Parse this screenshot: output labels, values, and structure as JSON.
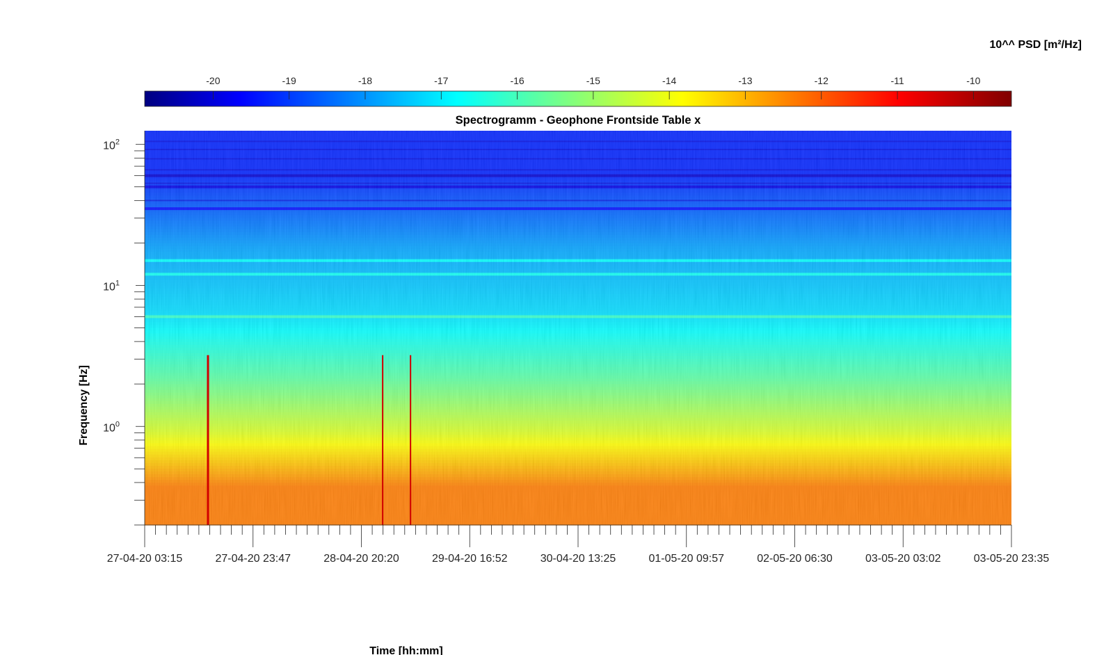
{
  "chart_data": {
    "type": "heatmap",
    "title": "Spectrogramm - Geophone Frontside Table x",
    "xlabel": "Time [hh:mm]",
    "ylabel": "Frequency [Hz]",
    "colorbar_label": "10^^ PSD [m²/Hz]",
    "colorbar_ticks": [
      "-20",
      "-19",
      "-18",
      "-17",
      "-16",
      "-15",
      "-14",
      "-13",
      "-12",
      "-11",
      "-10"
    ],
    "colorbar_range": [
      -20.9,
      -9.5
    ],
    "colormap": "jet",
    "x_tick_labels": [
      "27-04-20 03:15",
      "27-04-20 23:47",
      "28-04-20 20:20",
      "29-04-20 16:52",
      "30-04-20 13:25",
      "01-05-20 09:57",
      "02-05-20 06:30",
      "03-05-20 03:02",
      "03-05-20 23:35"
    ],
    "y_scale": "log",
    "y_tick_labels": [
      {
        "base": "10",
        "exp": "0"
      },
      {
        "base": "10",
        "exp": "1"
      },
      {
        "base": "10",
        "exp": "2"
      }
    ],
    "ylim": [
      0.2,
      125
    ],
    "bands": [
      {
        "f_min": 0.2,
        "f_max": 0.7,
        "psd": -12.3
      },
      {
        "f_min": 0.7,
        "f_max": 1.2,
        "psd": -14.2
      },
      {
        "f_min": 1.2,
        "f_max": 4,
        "psd": -15.6
      },
      {
        "f_min": 4,
        "f_max": 10,
        "psd": -17.0
      },
      {
        "f_min": 10,
        "f_max": 30,
        "psd": -17.6
      },
      {
        "f_min": 30,
        "f_max": 125,
        "psd": -19.1
      }
    ],
    "narrowband_lines_hz": [
      6,
      12,
      15,
      35,
      50,
      60
    ],
    "transient_events_day": [
      0.5,
      1.88,
      2.1
    ]
  }
}
